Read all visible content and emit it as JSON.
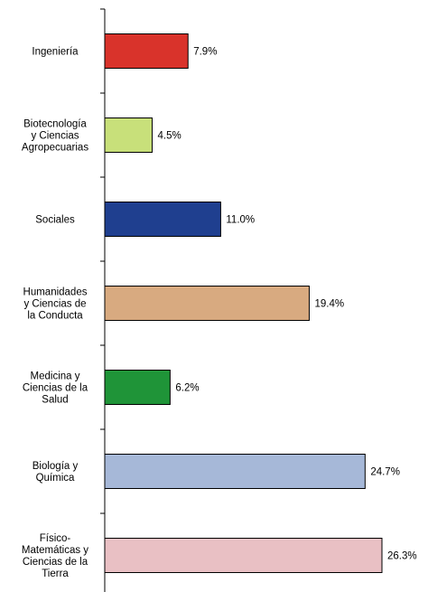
{
  "chart_data": {
    "type": "bar",
    "orientation": "horizontal",
    "categories": [
      [
        "Ingeniería"
      ],
      [
        "Biotecnología",
        "y Ciencias",
        "Agropecuarias"
      ],
      [
        "Sociales"
      ],
      [
        "Humanidades",
        "y Ciencias de",
        "la Conducta"
      ],
      [
        "Medicina y",
        "Ciencias de la",
        "Salud"
      ],
      [
        "Biología y",
        "Química"
      ],
      [
        "Físico-",
        "Matemáticas y",
        "Ciencias de la",
        "Tierra"
      ]
    ],
    "values": [
      7.9,
      4.5,
      11.0,
      19.4,
      6.2,
      24.7,
      26.3
    ],
    "value_labels": [
      "7.9%",
      "4.5%",
      "11.0%",
      "19.4%",
      "6.2%",
      "24.7%",
      "26.3%"
    ],
    "colors": [
      "#d9332b",
      "#c8e07a",
      "#1f3f8f",
      "#d8aa80",
      "#1f9438",
      "#a6b8d8",
      "#e9c0c4"
    ],
    "xlim": [
      0,
      26.3
    ],
    "grid": false,
    "legend": "none",
    "title": "",
    "xlabel": "",
    "ylabel": ""
  }
}
